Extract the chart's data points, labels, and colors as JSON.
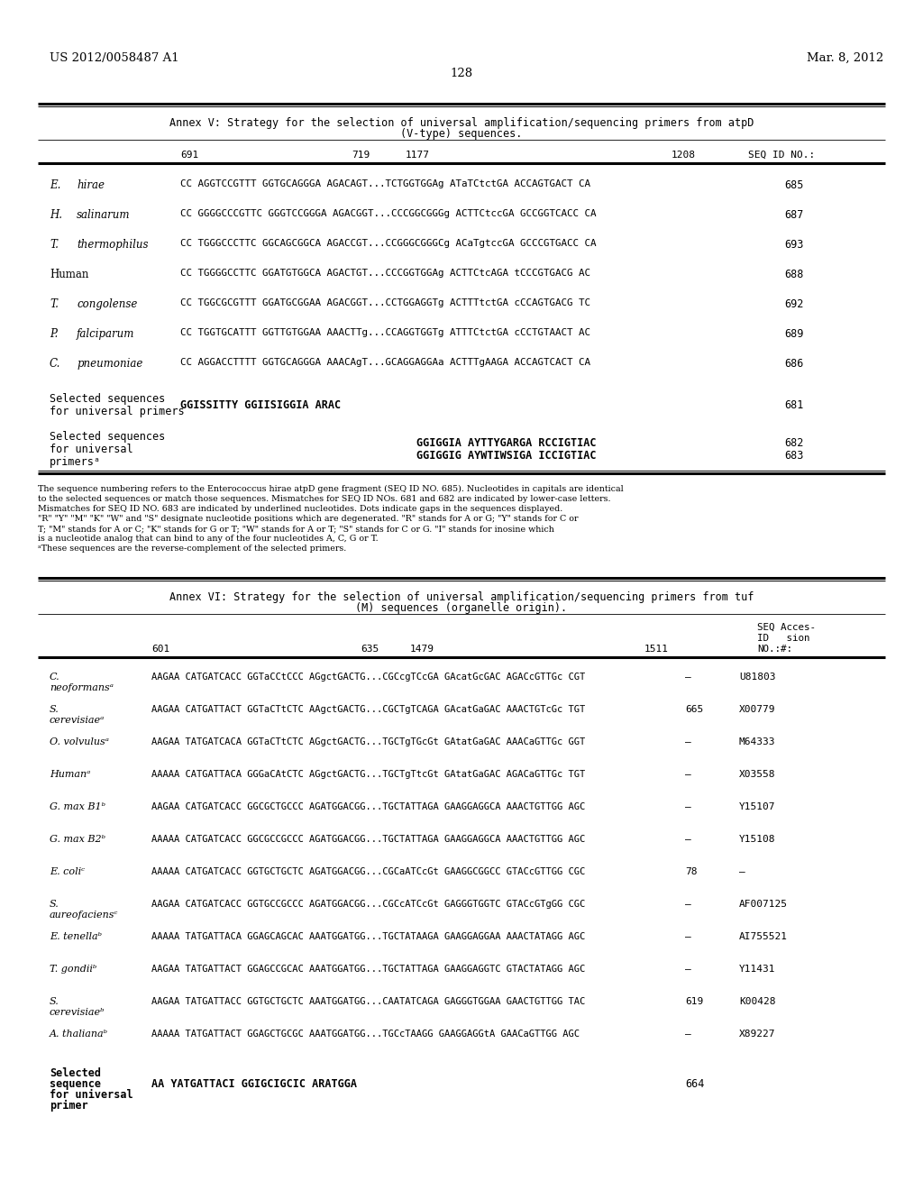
{
  "background_color": "#ffffff",
  "header_left": "US 2012/0058487 A1",
  "header_right": "Mar. 8, 2012",
  "page_number": "128",
  "annex_v": {
    "title_line1": "Annex V: Strategy for the selection of universal amplification/sequencing primers from atpD",
    "title_line2": "(V-type) sequences.",
    "rows": [
      [
        "E. hirae",
        "CC AGGTCCGTTT GGTGCAGGGA AGACAGT...TCTGGTGGAg ATaTCtctGA ACCAGTGACT CA",
        "685"
      ],
      [
        "H. salinarum",
        "CC GGGGCCCGTTC GGGTCCGGGA AGACGGT...CCCGGCGGGg ACTTCtccGA GCCGGTCACC CA",
        "687"
      ],
      [
        "T. thermophilus",
        "CC TGGGCCCTTC GGCAGCGGCA AGACCGT...CCGGGCGGGCg ACaTgtccGA GCCCGTGACC CA",
        "693"
      ],
      [
        "Human",
        "CC TGGGGCCTTC GGATGTGGCA AGACTGT...CCCGGTGGAg ACTTCtcAGA tCCCGTGACG AC",
        "688"
      ],
      [
        "T. congolense",
        "CC TGGCGCGTTT GGATGCGGAA AGACGGT...CCTGGAGGTg ACTTTtctGA cCCAGTGACG TC",
        "692"
      ],
      [
        "P. falciparum",
        "CC TGGTGCATTT GGTTGTGGAA AAACTTg...CCAGGTGGTg ATTTCtctGA cCCTGTAACT AC",
        "689"
      ],
      [
        "C. pneumoniae",
        "CC AGGACCTTTT GGTGCAGGGA AAACAgT...GCAGGAGGAa ACTTTgAAGA ACCAGTCACT CA",
        "686"
      ]
    ],
    "footnote_lines": [
      "The sequence numbering refers to the Enterococcus hirae atpD gene fragment (SEQ ID NO. 685). Nucleotides in capitals are identical",
      "to the selected sequences or match those sequences. Mismatches for SEQ ID NOs. 681 and 682 are indicated by lower-case letters.",
      "Mismatches for SEQ ID NO. 683 are indicated by underlined nucleotides. Dots indicate gaps in the sequences displayed.",
      "\"R\" \"Y\" \"M\" \"K\" \"W\" and \"S\" designate nucleotide positions which are degenerated. \"R\" stands for A or G; \"Y\" stands for C or",
      "T; \"M\" stands for A or C; \"K\" stands for G or T; \"W\" stands for A or T; \"S\" stands for C or G. \"I\" stands for inosine which",
      "is a nucleotide analog that can bind to any of the four nucleotides A, C, G or T.",
      "ᵃThese sequences are the reverse-complement of the selected primers."
    ]
  },
  "annex_vi": {
    "title_line1": "Annex VI: Strategy for the selection of universal amplification/sequencing primers from tuf",
    "title_line2": "(M) sequences (organelle origin).",
    "rows": [
      [
        "C.\nneoformansᵃ",
        "AAGAA CATGATCACC GGTaCCtCCC AGgctGACTG...CGCcgTCcGA GAcatGcGAC AGACcGTTGc CGT",
        "–",
        "U81803"
      ],
      [
        "S.\ncerevisiaeᵃ",
        "AAGAA CATGATTACT GGTaCTtCTC AAgctGACTG...CGCTgTCAGA GAcatGaGAC AAACTGTcGc TGT",
        "665",
        "X00779"
      ],
      [
        "O. volvulusᵃ",
        "AAGAA TATGATCACA GGTaCTtCTC AGgctGACTG...TGCTgTGcGt GAtatGaGAC AAACaGTTGc GGT",
        "–",
        "M64333"
      ],
      [
        "Humanᵃ",
        "AAAAA CATGATTACA GGGaCAtCTC AGgctGACTG...TGCTgTtcGt GAtatGaGAC AGACaGTTGc TGT",
        "–",
        "X03558"
      ],
      [
        "G. max B1ᵇ",
        "AAGAA CATGATCACC GGCGCTGCCC AGATGGACGG...TGCTATTAGA GAAGGAGGCA AAACTGTTGG AGC",
        "–",
        "Y15107"
      ],
      [
        "G. max B2ᵇ",
        "AAAAA CATGATCACC GGCGCCGCCC AGATGGACGG...TGCTATTAGA GAAGGAGGCA AAACTGTTGG AGC",
        "–",
        "Y15108"
      ],
      [
        "E. coliᶜ",
        "AAAAA CATGATCACC GGTGCTGCTC AGATGGACGG...CGCaATCcGt GAAGGCGGCC GTACcGTTGG CGC",
        "78",
        "–"
      ],
      [
        "S.\naureofaciensᶜ",
        "AAGAA CATGATCACC GGTGCCGCCC AGATGGACGG...CGCcATCcGt GAGGGTGGTC GTACcGTgGG CGC",
        "–",
        "AF007125"
      ],
      [
        "E. tenellaᵇ",
        "AAAAA TATGATTACA GGAGCAGCAC AAATGGATGG...TGCTATAAGA GAAGGAGGAA AAACTATAGG AGC",
        "–",
        "AI755521"
      ],
      [
        "T. gondiiᵇ",
        "AAGAA TATGATTACT GGAGCCGCAC AAATGGATGG...TGCTATTAGA GAAGGAGGTC GTACTATAGG AGC",
        "–",
        "Y11431"
      ],
      [
        "S.\ncerevisiaeᵇ",
        "AAGAA TATGATTACC GGTGCTGCTC AAATGGATGG...CAATATCAGA GAGGGTGGAA GAACTGTTGG TAC",
        "619",
        "K00428"
      ],
      [
        "A. thalianaᵇ",
        "AAAAA TATGATTACT GGAGCTGCGC AAATGGATGG...TGCcTAAGG GAAGGAGGtA GAACaGTTGG AGC",
        "–",
        "X89227"
      ]
    ]
  }
}
